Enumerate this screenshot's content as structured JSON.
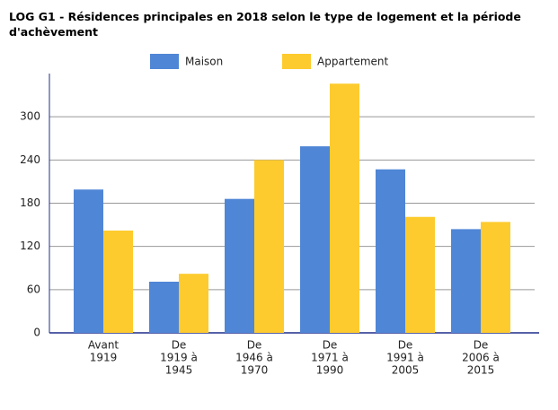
{
  "chart_data": {
    "type": "bar",
    "title": "LOG G1 - Résidences principales en 2018 selon le type de logement et la période d'achèvement",
    "categories": [
      [
        "Avant",
        "1919"
      ],
      [
        "De",
        "1919 à",
        "1945"
      ],
      [
        "De",
        "1946 à",
        "1970"
      ],
      [
        "De",
        "1971 à",
        "1990"
      ],
      [
        "De",
        "1991 à",
        "2005"
      ],
      [
        "De",
        "2006 à",
        "2015"
      ]
    ],
    "series": [
      {
        "name": "Maison",
        "color": "#4f86d6",
        "values": [
          199,
          71,
          186,
          259,
          227,
          144
        ]
      },
      {
        "name": "Appartement",
        "color": "#fdcb2e",
        "values": [
          142,
          82,
          240,
          346,
          161,
          154
        ]
      }
    ],
    "ylim": [
      0,
      360
    ],
    "yticks": [
      0,
      60,
      120,
      180,
      240,
      300
    ],
    "grid": true,
    "legend": "top"
  }
}
